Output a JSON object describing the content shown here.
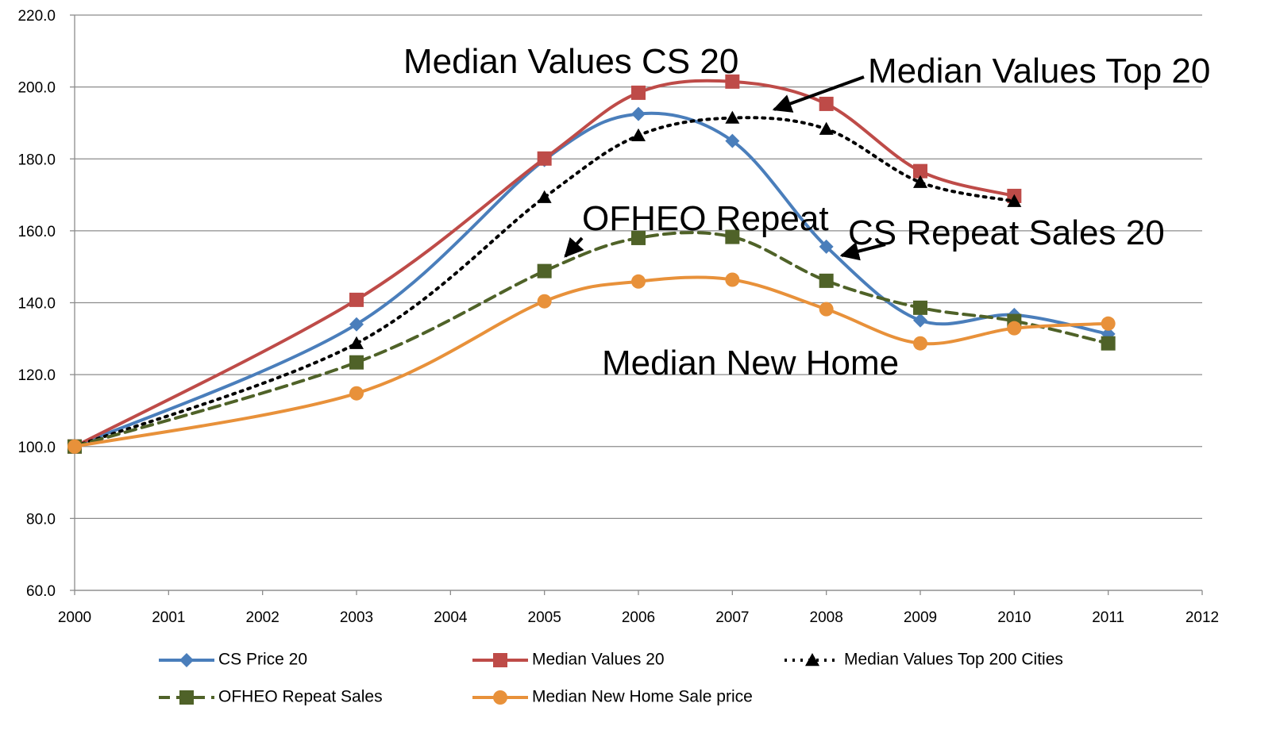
{
  "chart_data": {
    "type": "line",
    "x": [
      2000,
      2003,
      2005,
      2006,
      2007,
      2008,
      2009,
      2010,
      2011
    ],
    "series": [
      {
        "name": "CS Price 20",
        "color": "#4a7ebb",
        "marker": "diamond",
        "dash": "solid",
        "values": [
          100,
          134.0,
          179.7,
          192.5,
          185.0,
          155.6,
          135.1,
          136.6,
          131.3
        ]
      },
      {
        "name": "Median Values 20",
        "color": "#be4b48",
        "marker": "square",
        "dash": "solid",
        "values": [
          100,
          140.8,
          180.1,
          198.4,
          201.5,
          195.3,
          176.6,
          169.7,
          null
        ]
      },
      {
        "name": "Median Values Top 200 Cities",
        "color": "#000000",
        "marker": "triangle",
        "dash": "dotted",
        "values": [
          100,
          128.7,
          169.3,
          186.5,
          191.4,
          188.3,
          173.5,
          168.2,
          null
        ]
      },
      {
        "name": "OFHEO Repeat Sales",
        "color": "#4f6228",
        "marker": "square",
        "dash": "dashed",
        "values": [
          100,
          123.4,
          148.8,
          158.0,
          158.3,
          146.1,
          138.6,
          134.9,
          128.7
        ]
      },
      {
        "name": "Median New Home Sale price",
        "color": "#e8913a",
        "marker": "circle",
        "dash": "solid",
        "values": [
          100,
          114.8,
          140.4,
          145.9,
          146.4,
          138.2,
          128.7,
          132.9,
          134.2
        ]
      }
    ],
    "xlim": [
      2000,
      2012
    ],
    "xticks": [
      2000,
      2001,
      2002,
      2003,
      2004,
      2005,
      2006,
      2007,
      2008,
      2009,
      2010,
      2011,
      2012
    ],
    "ylim": [
      60,
      220
    ],
    "yticks": [
      {
        "value": 60,
        "label": "60.0"
      },
      {
        "value": 80,
        "label": "80.0"
      },
      {
        "value": 100,
        "label": "100.0"
      },
      {
        "value": 120,
        "label": "120.0"
      },
      {
        "value": 140,
        "label": "140.0"
      },
      {
        "value": 160,
        "label": "160.0"
      },
      {
        "value": 180,
        "label": "180.0"
      },
      {
        "value": 200,
        "label": "200.0"
      },
      {
        "value": 220,
        "label": "220.0"
      }
    ],
    "grid": true,
    "legend": "bottom",
    "annotations": [
      "Median Values CS 20",
      "Median Values Top 20",
      "OFHEO Repeat",
      "CS Repeat Sales 20",
      "Median New Home"
    ]
  }
}
